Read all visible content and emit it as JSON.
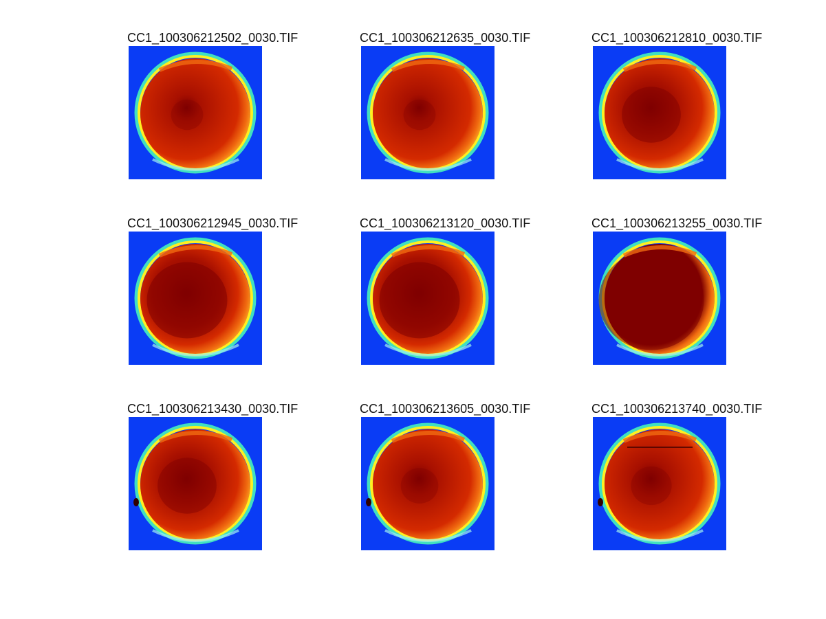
{
  "figure": {
    "panels": [
      {
        "title": "CC1_100306212502_0030.TIF",
        "variant": "light"
      },
      {
        "title": "CC1_100306212635_0030.TIF",
        "variant": "light"
      },
      {
        "title": "CC1_100306212810_0030.TIF",
        "variant": "medium"
      },
      {
        "title": "CC1_100306212945_0030.TIF",
        "variant": "dark"
      },
      {
        "title": "CC1_100306213120_0030.TIF",
        "variant": "dark"
      },
      {
        "title": "CC1_100306213255_0030.TIF",
        "variant": "full"
      },
      {
        "title": "CC1_100306213430_0030.TIF",
        "variant": "medium-spot"
      },
      {
        "title": "CC1_100306213605_0030.TIF",
        "variant": "light-spot"
      },
      {
        "title": "CC1_100306213740_0030.TIF",
        "variant": "light-spot-line"
      }
    ]
  },
  "colors": {
    "background": "#0a3cf5",
    "dark_red": "#7f0000",
    "red": "#d42a00",
    "orange": "#f06a10",
    "yellow": "#fff020",
    "cyan": "#40e0c0",
    "light_cyan": "#a0f0f0"
  }
}
